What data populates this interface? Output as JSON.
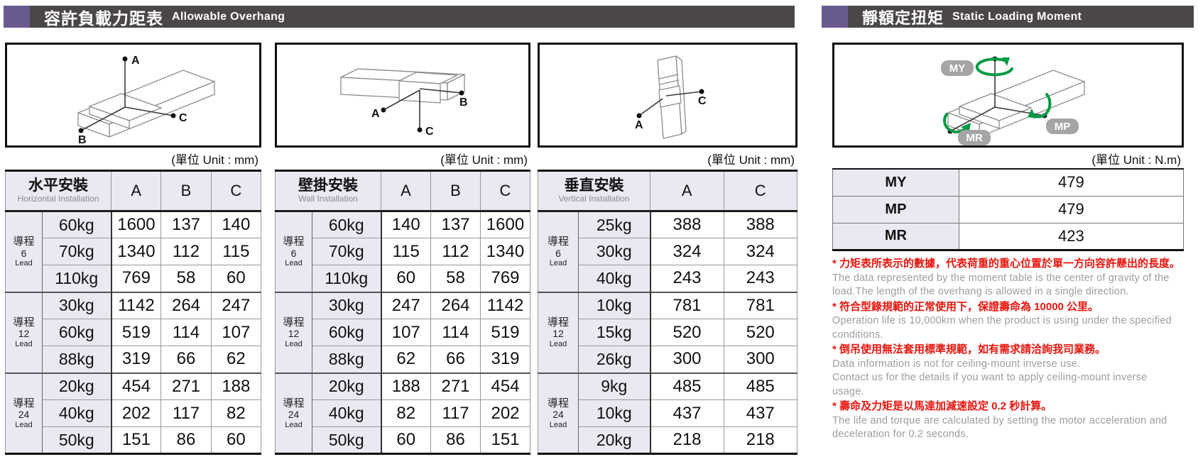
{
  "colors": {
    "accent_purple": "#685a8e",
    "header_bar": "#4b4748",
    "table_header_bg": "#e9e9f2",
    "note_red": "#e8140d",
    "note_gray": "#9d9d9d",
    "diagram_green": "#009a44",
    "pill_gray": "#a5a5a5"
  },
  "sections": {
    "left": {
      "title_zh": "容許負載力距表",
      "title_en": "Allowable Overhang"
    },
    "right": {
      "title_zh": "靜額定扭矩",
      "title_en": "Static Loading Moment"
    }
  },
  "units": {
    "mm": "(單位 Unit : mm)",
    "nm": "(單位 Unit : N.m)"
  },
  "overhang_tables": [
    {
      "id": "horizontal",
      "title_zh": "水平安裝",
      "title_en": "Horizontal Installation",
      "columns": [
        "A",
        "B",
        "C"
      ],
      "diagram_labels": [
        "A",
        "B",
        "C"
      ],
      "groups": [
        {
          "lead_zh": "導程",
          "lead_num": "6",
          "lead_en": "Lead",
          "rows": [
            {
              "load": "60kg",
              "values": [
                "1600",
                "137",
                "140"
              ]
            },
            {
              "load": "70kg",
              "values": [
                "1340",
                "112",
                "115"
              ]
            },
            {
              "load": "110kg",
              "values": [
                "769",
                "58",
                "60"
              ]
            }
          ]
        },
        {
          "lead_zh": "導程",
          "lead_num": "12",
          "lead_en": "Lead",
          "rows": [
            {
              "load": "30kg",
              "values": [
                "1142",
                "264",
                "247"
              ]
            },
            {
              "load": "60kg",
              "values": [
                "519",
                "114",
                "107"
              ]
            },
            {
              "load": "88kg",
              "values": [
                "319",
                "66",
                "62"
              ]
            }
          ]
        },
        {
          "lead_zh": "導程",
          "lead_num": "24",
          "lead_en": "Lead",
          "rows": [
            {
              "load": "20kg",
              "values": [
                "454",
                "271",
                "188"
              ]
            },
            {
              "load": "40kg",
              "values": [
                "202",
                "117",
                "82"
              ]
            },
            {
              "load": "50kg",
              "values": [
                "151",
                "86",
                "60"
              ]
            }
          ]
        }
      ]
    },
    {
      "id": "wall",
      "title_zh": "壁掛安裝",
      "title_en": "Wall Installation",
      "columns": [
        "A",
        "B",
        "C"
      ],
      "diagram_labels": [
        "A",
        "B",
        "C"
      ],
      "groups": [
        {
          "lead_zh": "導程",
          "lead_num": "6",
          "lead_en": "Lead",
          "rows": [
            {
              "load": "60kg",
              "values": [
                "140",
                "137",
                "1600"
              ]
            },
            {
              "load": "70kg",
              "values": [
                "115",
                "112",
                "1340"
              ]
            },
            {
              "load": "110kg",
              "values": [
                "60",
                "58",
                "769"
              ]
            }
          ]
        },
        {
          "lead_zh": "導程",
          "lead_num": "12",
          "lead_en": "Lead",
          "rows": [
            {
              "load": "30kg",
              "values": [
                "247",
                "264",
                "1142"
              ]
            },
            {
              "load": "60kg",
              "values": [
                "107",
                "114",
                "519"
              ]
            },
            {
              "load": "88kg",
              "values": [
                "62",
                "66",
                "319"
              ]
            }
          ]
        },
        {
          "lead_zh": "導程",
          "lead_num": "24",
          "lead_en": "Lead",
          "rows": [
            {
              "load": "20kg",
              "values": [
                "188",
                "271",
                "454"
              ]
            },
            {
              "load": "40kg",
              "values": [
                "82",
                "117",
                "202"
              ]
            },
            {
              "load": "50kg",
              "values": [
                "60",
                "86",
                "151"
              ]
            }
          ]
        }
      ]
    },
    {
      "id": "vertical",
      "title_zh": "垂直安裝",
      "title_en": "Vertical Installation",
      "columns": [
        "A",
        "C"
      ],
      "diagram_labels": [
        "A",
        "C"
      ],
      "groups": [
        {
          "lead_zh": "導程",
          "lead_num": "6",
          "lead_en": "Lead",
          "rows": [
            {
              "load": "25kg",
              "values": [
                "388",
                "388"
              ]
            },
            {
              "load": "30kg",
              "values": [
                "324",
                "324"
              ]
            },
            {
              "load": "40kg",
              "values": [
                "243",
                "243"
              ]
            }
          ]
        },
        {
          "lead_zh": "導程",
          "lead_num": "12",
          "lead_en": "Lead",
          "rows": [
            {
              "load": "10kg",
              "values": [
                "781",
                "781"
              ]
            },
            {
              "load": "15kg",
              "values": [
                "520",
                "520"
              ]
            },
            {
              "load": "26kg",
              "values": [
                "300",
                "300"
              ]
            }
          ]
        },
        {
          "lead_zh": "導程",
          "lead_num": "24",
          "lead_en": "Lead",
          "rows": [
            {
              "load": "9kg",
              "values": [
                "485",
                "485"
              ]
            },
            {
              "load": "10kg",
              "values": [
                "437",
                "437"
              ]
            },
            {
              "load": "20kg",
              "values": [
                "218",
                "218"
              ]
            }
          ]
        }
      ]
    }
  ],
  "moment_table": {
    "diagram_labels": [
      "MY",
      "MP",
      "MR"
    ],
    "rows": [
      {
        "label": "MY",
        "value": "479"
      },
      {
        "label": "MP",
        "value": "479"
      },
      {
        "label": "MR",
        "value": "423"
      }
    ]
  },
  "notes": [
    {
      "type": "zh",
      "text": "* 力矩表所表示的數據，代表荷重的重心位置於單一方向容許懸出的長度。"
    },
    {
      "type": "en",
      "text": "The data represented by the moment table is the center of gravity of the load.The length of the overhang is allowed in a single direction."
    },
    {
      "type": "zh",
      "text": "* 符合型錄規範的正常使用下，保證壽命為 10000 公里。"
    },
    {
      "type": "en",
      "text": "Operation life is 10,000km when the product is using under the specified conditions."
    },
    {
      "type": "zh",
      "text": "* 倒吊使用無法套用標準規範，如有需求請洽詢我司業務。"
    },
    {
      "type": "en",
      "text": "Data information is not for ceiling-mount inverse use."
    },
    {
      "type": "en",
      "text": "Contact us for the details if you want to apply ceiling-mount inverse usage."
    },
    {
      "type": "zh",
      "text": "* 壽命及力矩是以馬達加減速設定 0.2 秒計算。"
    },
    {
      "type": "en",
      "text": "The life and torque are calculated by setting the motor acceleration and deceleration for 0.2 seconds."
    }
  ]
}
